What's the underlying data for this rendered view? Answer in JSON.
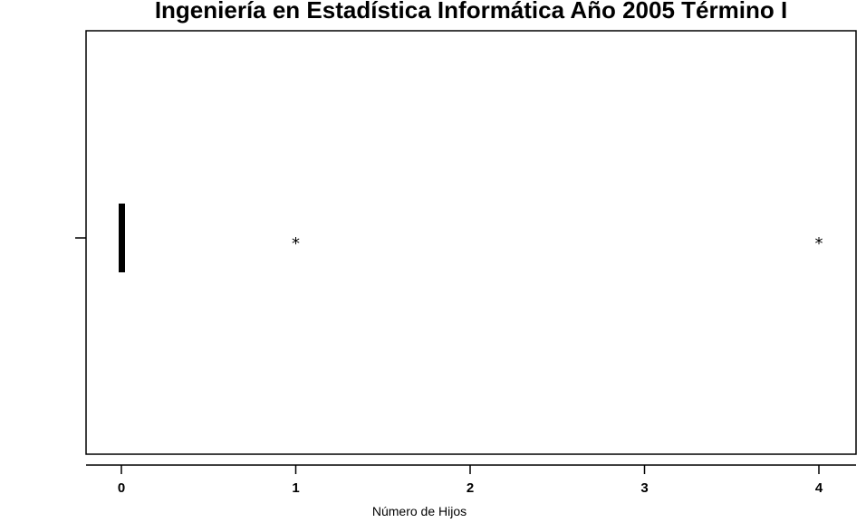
{
  "chart_data": {
    "type": "boxplot",
    "title": "Ingeniería en Estadística Informática Año 2005 Término I",
    "xlabel": "Número de Hijos",
    "ylabel": "",
    "xlim": [
      -0.2,
      4.2
    ],
    "xticks": [
      0,
      1,
      2,
      3,
      4
    ],
    "xtick_labels": [
      "0",
      "1",
      "2",
      "3",
      "4"
    ],
    "orientation": "horizontal",
    "box": {
      "min": 0,
      "q1": 0,
      "median": 0,
      "q3": 0,
      "max": 0
    },
    "outliers": [
      1,
      4
    ],
    "outlier_symbol": "*",
    "grid": false,
    "legend": "none"
  }
}
